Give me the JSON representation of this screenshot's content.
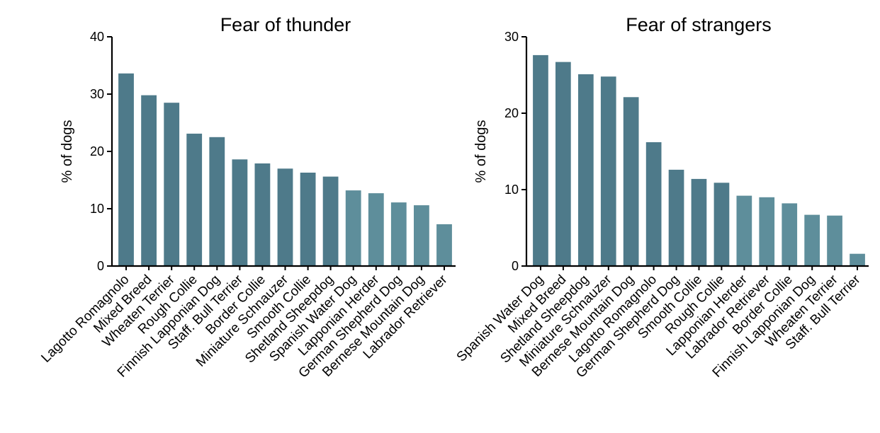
{
  "chart_data": [
    {
      "type": "bar",
      "title": "Fear of thunder",
      "xlabel": "",
      "ylabel": "% of dogs",
      "ylim": [
        0,
        40
      ],
      "yticks": [
        0,
        10,
        20,
        30,
        40
      ],
      "categories": [
        "Lagotto Romagnolo",
        "Mixed Breed",
        "Wheaten Terrier",
        "Rough Collie",
        "Finnish Lapponian Dog",
        "Staff. Bull Terrier",
        "Border Collie",
        "Miniature Schnauzer",
        "Smooth Collie",
        "Shetland Sheepdog",
        "Spanish Water Dog",
        "Lapponian Herder",
        "German Shepherd Dog",
        "Bernese Mountain Dog",
        "Labrador Retriever"
      ],
      "values": [
        33.6,
        29.8,
        28.5,
        23.1,
        22.5,
        18.6,
        17.9,
        17.0,
        16.3,
        15.6,
        13.2,
        12.7,
        11.1,
        10.6,
        7.3
      ],
      "bar_colors": [
        "#4e7a8a",
        "#4e7a8a",
        "#4e7a8a",
        "#4e7a8a",
        "#4e7a8a",
        "#4e7a8a",
        "#4e7a8a",
        "#4e7a8a",
        "#4e7a8a",
        "#4e7a8a",
        "#5e8e9b",
        "#5e8e9b",
        "#5e8e9b",
        "#5e8e9b",
        "#5e8e9b"
      ],
      "grid": false
    },
    {
      "type": "bar",
      "title": "Fear of strangers",
      "xlabel": "",
      "ylabel": "% of dogs",
      "ylim": [
        0,
        30
      ],
      "yticks": [
        0,
        10,
        20,
        30
      ],
      "categories": [
        "Spanish Water Dog",
        "Mixed Breed",
        "Shetland Sheepdog",
        "Miniature Schnauzer",
        "Bernese Mountain Dog",
        "Lagotto Romagnolo",
        "German Shepherd Dog",
        "Smooth Collie",
        "Rough Collie",
        "Lapponian Herder",
        "Labrador Retriever",
        "Border Collie",
        "Finnish Lapponian Dog",
        "Wheaten Terrier",
        "Staff. Bull Terrier"
      ],
      "values": [
        27.6,
        26.7,
        25.1,
        24.8,
        22.1,
        16.2,
        12.6,
        11.4,
        10.9,
        9.2,
        9.0,
        8.2,
        6.7,
        6.6,
        1.6
      ],
      "bar_colors": [
        "#4e7a8a",
        "#4e7a8a",
        "#4e7a8a",
        "#4e7a8a",
        "#4e7a8a",
        "#4e7a8a",
        "#4e7a8a",
        "#4e7a8a",
        "#4e7a8a",
        "#5e8e9b",
        "#5e8e9b",
        "#5e8e9b",
        "#5e8e9b",
        "#5e8e9b",
        "#5e8e9b"
      ],
      "grid": false
    }
  ]
}
